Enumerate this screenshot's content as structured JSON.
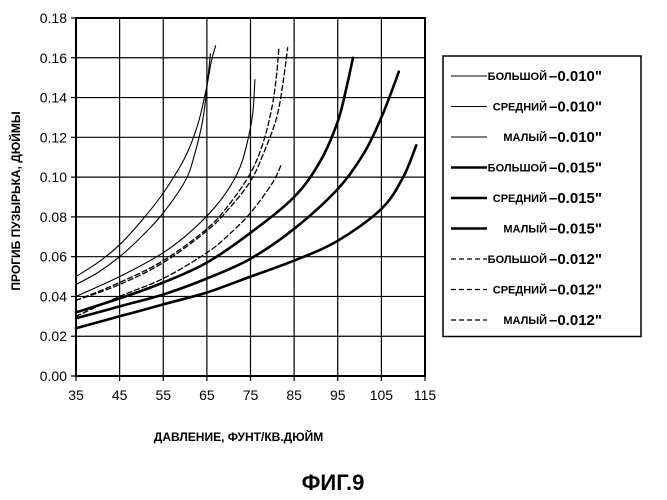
{
  "chart_data": {
    "type": "line",
    "title": "ФИГ.9",
    "xlabel": "ДАВЛЕНИЕ, ФУНТ/КВ.ДЮЙМ",
    "ylabel": "ПРОГИБ ПУЗЫРЬКА, ДЮЙМЫ",
    "xlim": [
      35,
      115
    ],
    "ylim": [
      0,
      0.18
    ],
    "x_ticks": [
      "35",
      "45",
      "55",
      "65",
      "75",
      "85",
      "95",
      "105",
      "115"
    ],
    "y_ticks": [
      "0.00",
      "0.02",
      "0.04",
      "0.06",
      "0.08",
      "0.10",
      "0.12",
      "0.14",
      "0.16",
      "0.18"
    ],
    "grid": true,
    "legend_position": "right",
    "series": [
      {
        "name": "БОЛЬШОЙ",
        "thickness_label": "–0.010\"",
        "style": "thin-solid",
        "points": [
          [
            35,
            0.05
          ],
          [
            40,
            0.057
          ],
          [
            45,
            0.066
          ],
          [
            50,
            0.078
          ],
          [
            55,
            0.092
          ],
          [
            60,
            0.11
          ],
          [
            63,
            0.127
          ],
          [
            65,
            0.146
          ],
          [
            66,
            0.158
          ],
          [
            67,
            0.166
          ]
        ]
      },
      {
        "name": "СРЕДНИЙ",
        "thickness_label": "–0.010\"",
        "style": "thin-solid",
        "points": [
          [
            35,
            0.046
          ],
          [
            40,
            0.052
          ],
          [
            45,
            0.06
          ],
          [
            50,
            0.07
          ],
          [
            55,
            0.082
          ],
          [
            60,
            0.098
          ],
          [
            62,
            0.11
          ],
          [
            64,
            0.128
          ],
          [
            65,
            0.145
          ],
          [
            65.8,
            0.162
          ]
        ]
      },
      {
        "name": "МАЛЫЙ",
        "thickness_label": "–0.010\"",
        "style": "thin-solid",
        "points": [
          [
            35,
            0.04
          ],
          [
            45,
            0.05
          ],
          [
            55,
            0.062
          ],
          [
            62,
            0.074
          ],
          [
            68,
            0.088
          ],
          [
            72,
            0.102
          ],
          [
            74,
            0.115
          ],
          [
            75.5,
            0.132
          ],
          [
            76,
            0.149
          ]
        ]
      },
      {
        "name": "БОЛЬШОЙ",
        "thickness_label": "–0.015\"",
        "style": "thick-solid",
        "points": [
          [
            35,
            0.032
          ],
          [
            45,
            0.039
          ],
          [
            55,
            0.047
          ],
          [
            65,
            0.057
          ],
          [
            75,
            0.072
          ],
          [
            85,
            0.09
          ],
          [
            91,
            0.108
          ],
          [
            95,
            0.128
          ],
          [
            97,
            0.145
          ],
          [
            98.5,
            0.16
          ]
        ]
      },
      {
        "name": "СРЕДНИЙ",
        "thickness_label": "–0.015\"",
        "style": "thick-solid",
        "points": [
          [
            35,
            0.029
          ],
          [
            45,
            0.035
          ],
          [
            55,
            0.041
          ],
          [
            65,
            0.049
          ],
          [
            75,
            0.059
          ],
          [
            85,
            0.074
          ],
          [
            95,
            0.094
          ],
          [
            101,
            0.112
          ],
          [
            105,
            0.13
          ],
          [
            108,
            0.147
          ],
          [
            109,
            0.153
          ]
        ]
      },
      {
        "name": "МАЛЫЙ",
        "thickness_label": "–0.015\"",
        "style": "thick-solid",
        "points": [
          [
            35,
            0.024
          ],
          [
            45,
            0.03
          ],
          [
            55,
            0.036
          ],
          [
            65,
            0.042
          ],
          [
            75,
            0.05
          ],
          [
            85,
            0.058
          ],
          [
            95,
            0.068
          ],
          [
            105,
            0.084
          ],
          [
            110,
            0.1
          ],
          [
            113,
            0.116
          ]
        ]
      },
      {
        "name": "БОЛЬШОЙ",
        "thickness_label": "–0.012\"",
        "style": "dashed",
        "points": [
          [
            35,
            0.038
          ],
          [
            45,
            0.047
          ],
          [
            55,
            0.058
          ],
          [
            65,
            0.074
          ],
          [
            70,
            0.086
          ],
          [
            75,
            0.102
          ],
          [
            78,
            0.118
          ],
          [
            80,
            0.136
          ],
          [
            81,
            0.152
          ],
          [
            81.5,
            0.165
          ]
        ]
      },
      {
        "name": "СРЕДНИЙ",
        "thickness_label": "–0.012\"",
        "style": "dashed",
        "points": [
          [
            35,
            0.038
          ],
          [
            45,
            0.046
          ],
          [
            55,
            0.057
          ],
          [
            65,
            0.073
          ],
          [
            70,
            0.084
          ],
          [
            75,
            0.098
          ],
          [
            78,
            0.112
          ],
          [
            81,
            0.13
          ],
          [
            82.5,
            0.148
          ],
          [
            83.5,
            0.165
          ]
        ]
      },
      {
        "name": "МАЛЫЙ",
        "thickness_label": "–0.012\"",
        "style": "dashed",
        "points": [
          [
            35,
            0.03
          ],
          [
            45,
            0.04
          ],
          [
            55,
            0.049
          ],
          [
            65,
            0.062
          ],
          [
            70,
            0.071
          ],
          [
            75,
            0.082
          ],
          [
            80,
            0.097
          ],
          [
            82,
            0.106
          ]
        ]
      }
    ]
  }
}
